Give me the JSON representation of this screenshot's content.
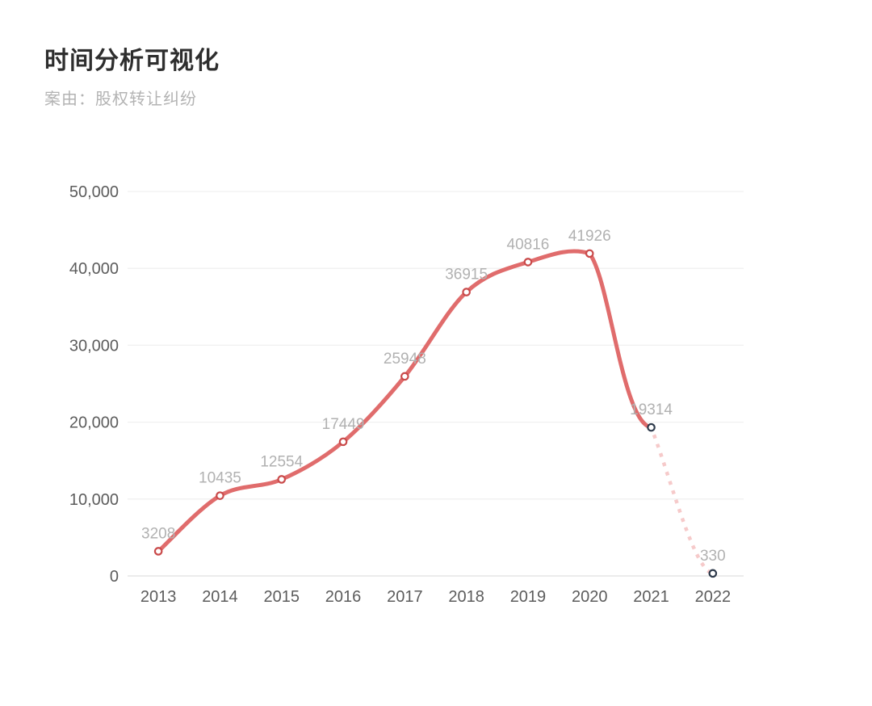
{
  "page": {
    "title": "时间分析可视化",
    "subtitle": "案由：股权转让纠纷"
  },
  "chart_data": {
    "type": "line",
    "title": "时间分析可视化",
    "subtitle": "案由：股权转让纠纷",
    "categories": [
      "2013",
      "2014",
      "2015",
      "2016",
      "2017",
      "2018",
      "2019",
      "2020",
      "2021",
      "2022"
    ],
    "values": [
      3208,
      10435,
      12554,
      17449,
      25948,
      36915,
      40816,
      41926,
      19314,
      330
    ],
    "data_labels": [
      "3208",
      "10435",
      "12554",
      "17449",
      "25948",
      "36915",
      "40816",
      "41926",
      "19314",
      "330"
    ],
    "solid_until_index": 8,
    "dotted_segment": {
      "from": "2021",
      "to": "2022",
      "style": "dotted"
    },
    "xlabel": "",
    "ylabel": "",
    "ylim": [
      0,
      50000
    ],
    "yticks": [
      0,
      10000,
      20000,
      30000,
      40000,
      50000
    ],
    "ytick_labels": [
      "0",
      "10,000",
      "20,000",
      "30,000",
      "40,000",
      "50,000"
    ],
    "grid": true,
    "legend": false,
    "smooth": true,
    "colors": {
      "line": "#e06c6c",
      "dotted_line": "#f6caca",
      "marker_stroke": "#c94a4a",
      "marker_dark_stroke": "#2e3a4b",
      "marker_fill": "#ffffff",
      "data_label": "#b1b1b1",
      "axis_text": "#5c5c5c",
      "gridline": "#f0f0f0",
      "baseline": "#e0e0e0",
      "title": "#2e2e2e",
      "subtitle": "#b3b3b3"
    }
  }
}
